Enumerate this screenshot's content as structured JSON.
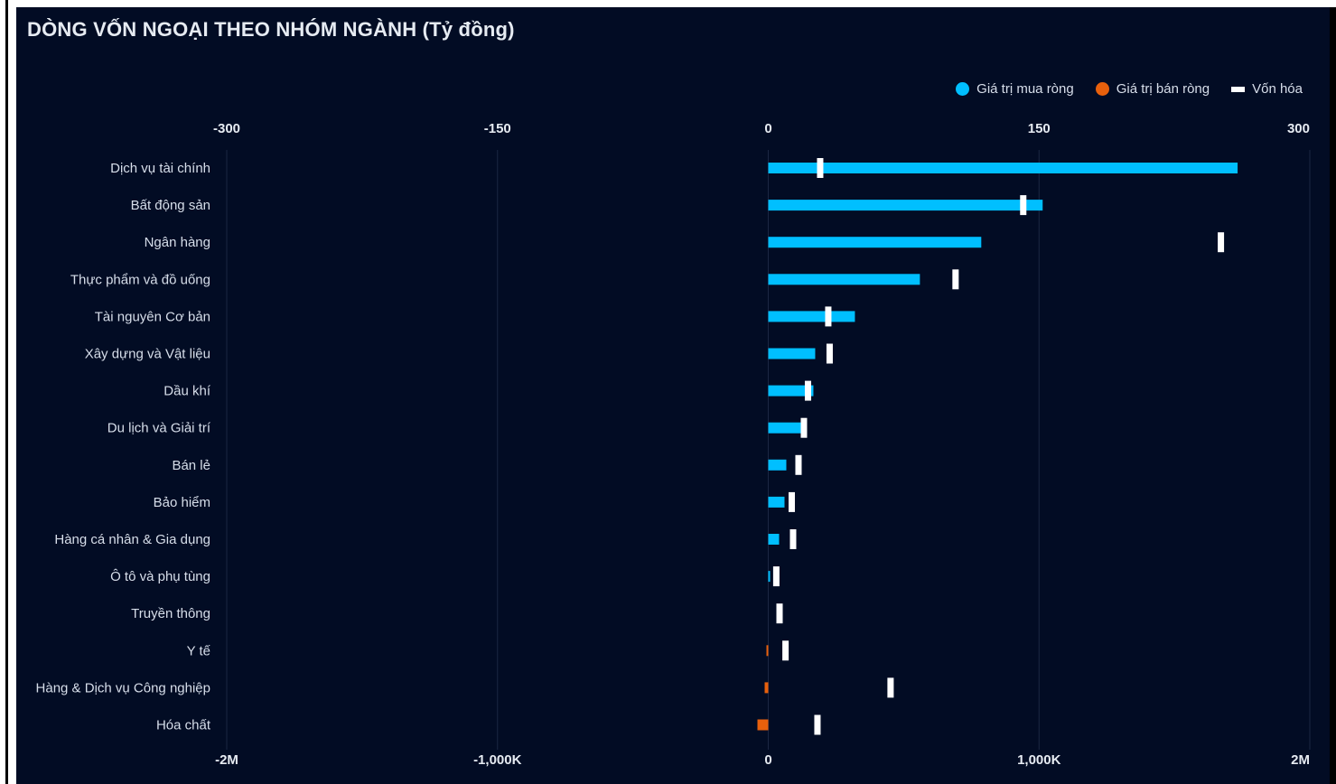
{
  "chart_data": {
    "type": "bar",
    "title": "DÒNG VỐN NGOẠI THEO NHÓM NGÀNH (Tỷ đồng)",
    "orientation": "horizontal",
    "categories": [
      "Dịch vụ tài chính",
      "Bất động sản",
      "Ngân hàng",
      "Thực phẩm và đồ uống",
      "Tài nguyên Cơ bản",
      "Xây dựng và Vật liệu",
      "Dầu khí",
      "Du lịch và Giải trí",
      "Bán lẻ",
      "Bảo hiểm",
      "Hàng cá nhân & Gia dụng",
      "Ô tô và phụ tùng",
      "Truyền thông",
      "Y tế",
      "Hàng & Dịch vụ Công nghiệp",
      "Hóa chất"
    ],
    "series": [
      {
        "name": "Giá trị mua ròng",
        "color": "#00bfff",
        "axis": "top",
        "values": [
          260,
          152,
          118,
          84,
          48,
          26,
          25,
          19,
          10,
          9,
          6,
          1,
          0,
          0,
          0,
          0
        ]
      },
      {
        "name": "Giá trị bán ròng",
        "color": "#e8600c",
        "axis": "top",
        "values": [
          0,
          0,
          0,
          0,
          0,
          0,
          0,
          0,
          0,
          0,
          0,
          0,
          0,
          1,
          2,
          6
        ]
      },
      {
        "name": "Vốn hóa",
        "color": "#ffffff",
        "axis": "bottom",
        "values": [
          190000,
          940000,
          1670000,
          690000,
          220000,
          225000,
          145000,
          130000,
          110000,
          85000,
          90000,
          28000,
          40000,
          62000,
          450000,
          180000
        ]
      }
    ],
    "top_axis": {
      "ticks": [
        -300,
        -150,
        0,
        150,
        300
      ],
      "tick_labels": [
        "-300",
        "-150",
        "0",
        "150",
        "300"
      ],
      "range": [
        -300,
        300
      ]
    },
    "bottom_axis": {
      "ticks": [
        -2000000,
        -1000000,
        0,
        1000000,
        2000000
      ],
      "tick_labels": [
        "-2M",
        "-1,000K",
        "0",
        "1,000K",
        "2M"
      ],
      "range": [
        -2000000,
        2000000
      ]
    },
    "legend_position": "top-right",
    "grid": true
  }
}
